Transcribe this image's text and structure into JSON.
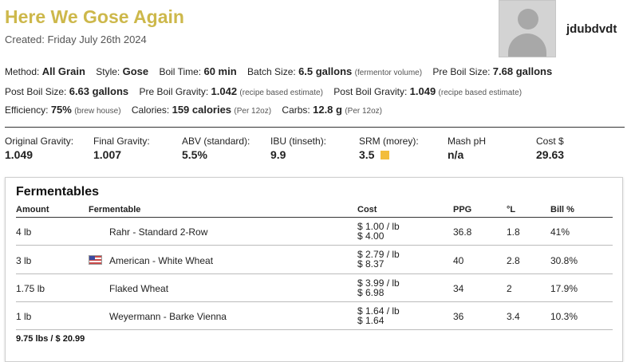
{
  "recipe": {
    "title": "Here We Gose Again",
    "created": "Created: Friday July 26th 2024",
    "username": "jdubdvdt"
  },
  "meta": {
    "method_label": "Method:",
    "method": "All Grain",
    "style_label": "Style:",
    "style": "Gose",
    "boil_time_label": "Boil Time:",
    "boil_time": "60 min",
    "batch_size_label": "Batch Size:",
    "batch_size": "6.5 gallons",
    "batch_size_note": "(fermentor volume)",
    "pre_boil_size_label": "Pre Boil Size:",
    "pre_boil_size": "7.68 gallons",
    "post_boil_size_label": "Post Boil Size:",
    "post_boil_size": "6.63 gallons",
    "pre_boil_gravity_label": "Pre Boil Gravity:",
    "pre_boil_gravity": "1.042",
    "pre_boil_gravity_note": "(recipe based estimate)",
    "post_boil_gravity_label": "Post Boil Gravity:",
    "post_boil_gravity": "1.049",
    "post_boil_gravity_note": "(recipe based estimate)",
    "efficiency_label": "Efficiency:",
    "efficiency": "75%",
    "efficiency_note": "(brew house)",
    "calories_label": "Calories:",
    "calories": "159 calories",
    "calories_note": "(Per 12oz)",
    "carbs_label": "Carbs:",
    "carbs": "12.8 g",
    "carbs_note": "(Per 12oz)"
  },
  "stats": [
    {
      "label": "Original Gravity:",
      "value": "1.049"
    },
    {
      "label": "Final Gravity:",
      "value": "1.007"
    },
    {
      "label": "ABV (standard):",
      "value": "5.5%"
    },
    {
      "label": "IBU (tinseth):",
      "value": "9.9"
    },
    {
      "label": "SRM (morey):",
      "value": "3.5",
      "color": "#f3bd3b"
    },
    {
      "label": "Mash pH",
      "value": "n/a"
    },
    {
      "label": "Cost $",
      "value": "29.63"
    }
  ],
  "fermentables": {
    "title": "Fermentables",
    "headers": {
      "amount": "Amount",
      "fermentable": "Fermentable",
      "cost": "Cost",
      "ppg": "PPG",
      "lovibond": "°L",
      "bill": "Bill %"
    },
    "rows": [
      {
        "amount": "4 lb",
        "name": "Rahr - Standard 2-Row",
        "cost_per": "$ 1.00 / lb",
        "cost_total": "$ 4.00",
        "ppg": "36.8",
        "lovibond": "1.8",
        "bill": "41%",
        "flag": null
      },
      {
        "amount": "3 lb",
        "name": "American - White Wheat",
        "cost_per": "$ 2.79 / lb",
        "cost_total": "$ 8.37",
        "ppg": "40",
        "lovibond": "2.8",
        "bill": "30.8%",
        "flag": "us-flag-icon"
      },
      {
        "amount": "1.75 lb",
        "name": "Flaked Wheat",
        "cost_per": "$ 3.99 / lb",
        "cost_total": "$ 6.98",
        "ppg": "34",
        "lovibond": "2",
        "bill": "17.9%",
        "flag": null
      },
      {
        "amount": "1 lb",
        "name": "Weyermann - Barke Vienna",
        "cost_per": "$ 1.64 / lb",
        "cost_total": "$ 1.64",
        "ppg": "36",
        "lovibond": "3.4",
        "bill": "10.3%",
        "flag": null
      }
    ],
    "total": "9.75 lbs / $ 20.99"
  }
}
